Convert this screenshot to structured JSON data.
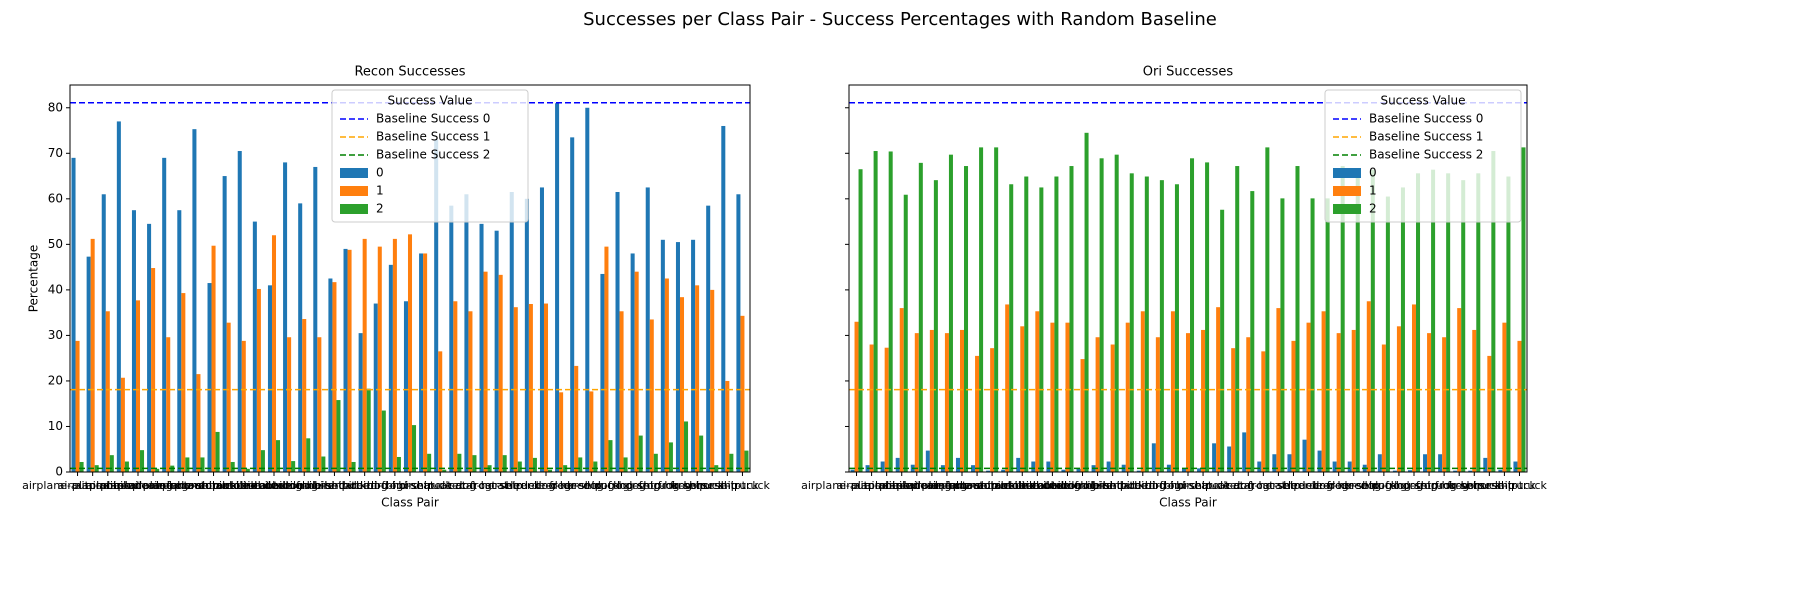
{
  "title": "Successes per Class Pair - Success Percentages with Random Baseline",
  "chart_data": [
    {
      "type": "bar",
      "title": "Recon Successes",
      "xlabel": "Class Pair",
      "ylabel": "Percentage",
      "categories": [
        "airplane-automobile",
        "airplane-bird",
        "airplane-cat",
        "airplane-deer",
        "airplane-dog",
        "airplane-frog",
        "airplane-horse",
        "airplane-ship",
        "airplane-truck",
        "automobile-bird",
        "automobile-cat",
        "automobile-deer",
        "automobile-dog",
        "automobile-frog",
        "automobile-horse",
        "automobile-ship",
        "automobile-truck",
        "bird-cat",
        "bird-deer",
        "bird-dog",
        "bird-frog",
        "bird-horse",
        "bird-ship",
        "bird-truck",
        "cat-deer",
        "cat-dog",
        "cat-frog",
        "cat-horse",
        "cat-ship",
        "cat-truck",
        "deer-dog",
        "deer-frog",
        "deer-horse",
        "deer-ship",
        "deer-truck",
        "dog-frog",
        "dog-horse",
        "dog-ship",
        "dog-truck",
        "frog-horse",
        "frog-ship",
        "frog-truck",
        "horse-ship",
        "horse-truck",
        "ship-truck"
      ],
      "series": [
        {
          "name": "0",
          "color": "#1f77b4",
          "values": [
            69,
            47.3,
            61,
            77,
            57.5,
            54.5,
            69,
            57.5,
            75.3,
            41.5,
            65,
            70.5,
            55,
            41,
            68,
            59,
            67,
            42.5,
            49,
            30.5,
            37,
            45.5,
            37.5,
            48,
            73,
            58.5,
            61,
            54.5,
            53,
            61.5,
            60,
            62.5,
            81,
            73.5,
            80,
            43.5,
            61.5,
            48,
            62.5,
            51,
            50.5,
            51,
            58.5,
            76,
            61
          ]
        },
        {
          "name": "1",
          "color": "#ff7f0e",
          "values": [
            28.8,
            51.2,
            35.3,
            20.7,
            37.7,
            44.8,
            29.6,
            39.3,
            21.5,
            49.7,
            32.8,
            28.8,
            40.2,
            52,
            29.6,
            33.6,
            29.6,
            41.7,
            48.8,
            51.2,
            49.5,
            51.2,
            52.2,
            48,
            26.5,
            37.5,
            35.3,
            44,
            43.3,
            36.2,
            36.9,
            37,
            17.5,
            23.3,
            17.7,
            49.5,
            35.3,
            44,
            33.5,
            42.5,
            38.4,
            41,
            40,
            20,
            34.3
          ]
        },
        {
          "name": "2",
          "color": "#2ca02c",
          "values": [
            2.2,
            1.5,
            3.7,
            2.3,
            4.8,
            0.7,
            1.4,
            3.2,
            3.2,
            8.8,
            2.2,
            0.7,
            4.8,
            7,
            2.4,
            7.4,
            3.4,
            15.8,
            2.2,
            18.3,
            13.5,
            3.3,
            10.3,
            4,
            0.5,
            4,
            3.7,
            1.5,
            3.7,
            2.3,
            3.1,
            0.5,
            1.5,
            3.2,
            2.3,
            7,
            3.2,
            8,
            4,
            6.5,
            11.1,
            8,
            1.5,
            4,
            4.7
          ]
        }
      ],
      "baselines": [
        {
          "name": "Baseline Success 0",
          "value": 81.1,
          "color": "#0000ff"
        },
        {
          "name": "Baseline Success 1",
          "value": 18.1,
          "color": "#ffa500"
        },
        {
          "name": "Baseline Success 2",
          "value": 0.8,
          "color": "#008000"
        }
      ],
      "ylim": [
        0,
        85
      ],
      "yticks": [
        0,
        10,
        20,
        30,
        40,
        50,
        60,
        70,
        80
      ],
      "show_ytick_labels": true,
      "legend_title": "Success Value",
      "legend": "upper center"
    },
    {
      "type": "bar",
      "title": "Ori Successes",
      "xlabel": "Class Pair",
      "categories": [
        "airplane-automobile",
        "airplane-bird",
        "airplane-cat",
        "airplane-deer",
        "airplane-dog",
        "airplane-frog",
        "airplane-horse",
        "airplane-ship",
        "airplane-truck",
        "automobile-bird",
        "automobile-cat",
        "automobile-deer",
        "automobile-dog",
        "automobile-frog",
        "automobile-horse",
        "automobile-ship",
        "automobile-truck",
        "bird-cat",
        "bird-deer",
        "bird-dog",
        "bird-frog",
        "bird-horse",
        "bird-ship",
        "bird-truck",
        "cat-deer",
        "cat-dog",
        "cat-frog",
        "cat-horse",
        "cat-ship",
        "cat-truck",
        "deer-dog",
        "deer-frog",
        "deer-horse",
        "deer-ship",
        "deer-truck",
        "dog-frog",
        "dog-horse",
        "dog-ship",
        "dog-truck",
        "frog-horse",
        "frog-ship",
        "frog-truck",
        "horse-ship",
        "horse-truck",
        "ship-truck"
      ],
      "series": [
        {
          "name": "0",
          "color": "#1f77b4",
          "values": [
            0.5,
            1.5,
            2.3,
            3.1,
            1.6,
            4.7,
            1.5,
            3.1,
            1.5,
            0.3,
            0.5,
            3.1,
            2.3,
            2.3,
            0.5,
            0.7,
            1.5,
            2.3,
            1.6,
            0.3,
            6.3,
            1.6,
            0.7,
            0.8,
            6.3,
            5.6,
            8.7,
            2.3,
            3.9,
            3.9,
            7.1,
            4.7,
            2.3,
            2.3,
            1.6,
            3.9,
            0.3,
            0.4,
            3.9,
            3.9,
            0.3,
            0.3,
            3.1,
            0.5,
            2.3
          ]
        },
        {
          "name": "1",
          "color": "#ff7f0e",
          "values": [
            33,
            28,
            27.3,
            36,
            30.5,
            31.2,
            30.5,
            31.2,
            25.5,
            27.2,
            36.8,
            32,
            35.3,
            32.8,
            32.8,
            24.8,
            29.6,
            28,
            32.8,
            35.3,
            29.6,
            35.3,
            30.5,
            31.2,
            36.2,
            27.2,
            29.6,
            26.5,
            36,
            28.8,
            32.8,
            35.3,
            30.5,
            31.2,
            37.5,
            28,
            32,
            36.8,
            30.5,
            29.6,
            36,
            31.2,
            25.5,
            32.8,
            28.8
          ]
        },
        {
          "name": "2",
          "color": "#2ca02c",
          "values": [
            66.5,
            70.5,
            70.4,
            60.9,
            67.9,
            64.1,
            69.7,
            67.2,
            71.3,
            71.3,
            63.2,
            64.9,
            62.5,
            64.9,
            67.2,
            74.5,
            68.9,
            69.7,
            65.6,
            64.9,
            64.1,
            63.2,
            68.9,
            68,
            57.6,
            67.2,
            61.7,
            71.3,
            60.1,
            67.2,
            60.1,
            60.1,
            67.2,
            66.4,
            66.4,
            60.5,
            62.5,
            65.6,
            66.4,
            65.6,
            64.1,
            65.6,
            70.5,
            64.9,
            71.3
          ]
        }
      ],
      "baselines": [
        {
          "name": "Baseline Success 0",
          "value": 81.1,
          "color": "#0000ff"
        },
        {
          "name": "Baseline Success 1",
          "value": 18.1,
          "color": "#ffa500"
        },
        {
          "name": "Baseline Success 2",
          "value": 0.8,
          "color": "#008000"
        }
      ],
      "ylim": [
        0,
        85
      ],
      "yticks": [
        0,
        10,
        20,
        30,
        40,
        50,
        60,
        70,
        80
      ],
      "show_ytick_labels": false,
      "legend_title": "Success Value",
      "legend": "upper right"
    }
  ]
}
